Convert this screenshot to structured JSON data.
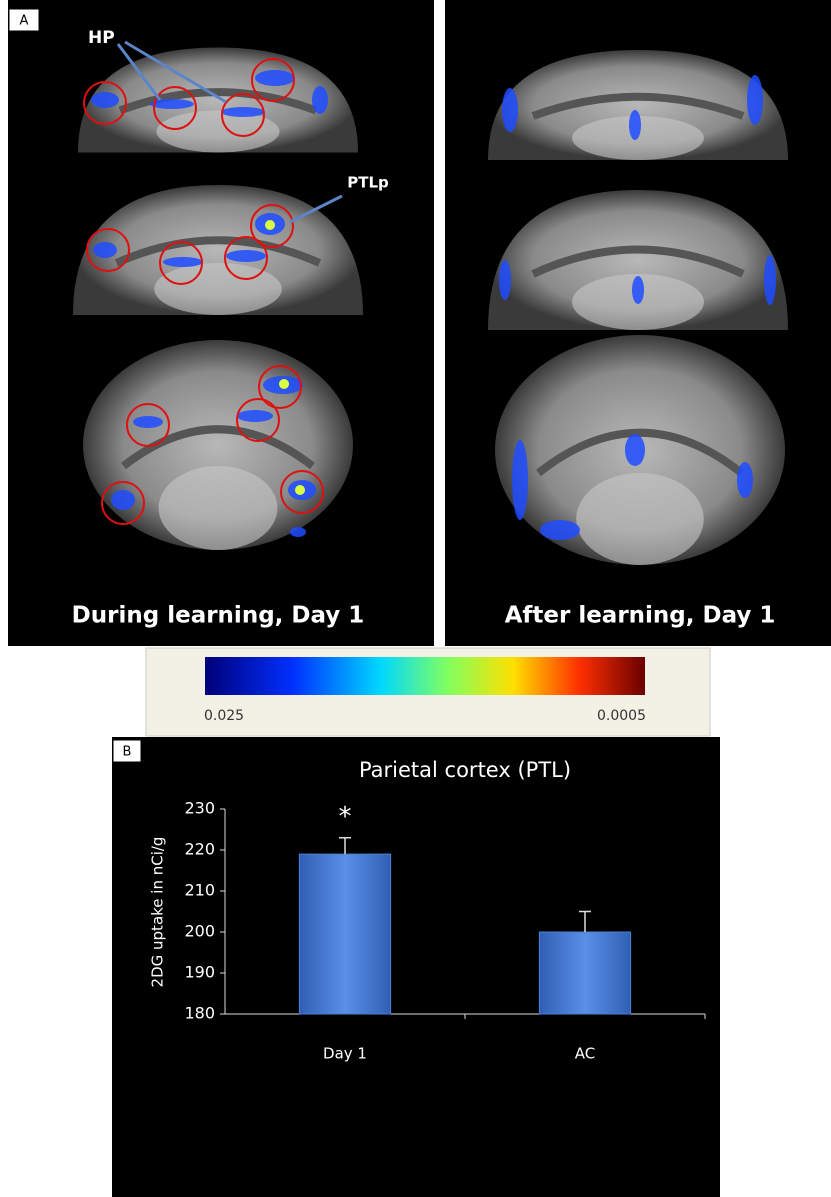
{
  "panel_a": {
    "label": "A",
    "annotations": [
      "HP",
      "PTLp"
    ],
    "captions": [
      "During learning, Day 1",
      "After learning, Day 1"
    ],
    "colorbar": {
      "min": 0.025,
      "max": 0.0005
    }
  },
  "chart_data": {
    "type": "bar",
    "label": "B",
    "title": "Parietal cortex (PTL)",
    "y_label": "2DG uptake in nCi/g",
    "categories": [
      "Day 1",
      "AC"
    ],
    "values": [
      219,
      200
    ],
    "errors": [
      4,
      5
    ],
    "annotations": [
      "*"
    ],
    "color": "#4a7fd6",
    "ylim": [
      180,
      230
    ],
    "yticks": [
      180,
      190,
      200,
      210,
      220,
      230
    ],
    "grid": false
  }
}
